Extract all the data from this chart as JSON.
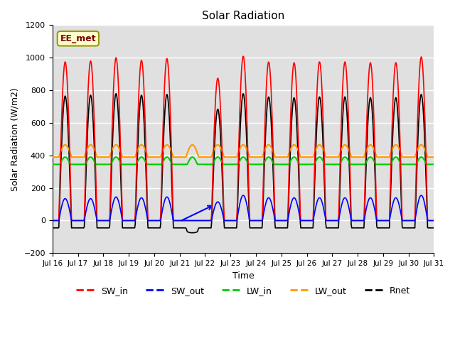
{
  "title": "Solar Radiation",
  "xlabel": "Time",
  "ylabel": "Solar Radiation (W/m2)",
  "annotation": "EE_met",
  "ylim": [
    -200,
    1200
  ],
  "colors": {
    "SW_in": "#ff0000",
    "SW_out": "#0000ff",
    "LW_in": "#00cc00",
    "LW_out": "#ff9900",
    "Rnet": "#000000"
  },
  "x_ticks": [
    "Jul 16",
    "Jul 17",
    "Jul 18",
    "Jul 19",
    "Jul 20",
    "Jul 21",
    "Jul 22",
    "Jul 23",
    "Jul 24",
    "Jul 25",
    "Jul 26",
    "Jul 27",
    "Jul 28",
    "Jul 29",
    "Jul 30",
    "Jul 31"
  ],
  "num_days": 15,
  "SW_in_peaks": [
    975,
    980,
    1000,
    985,
    995,
    0,
    875,
    1010,
    975,
    970,
    975,
    975,
    970,
    970,
    1005
  ],
  "SW_out_peaks": [
    135,
    135,
    145,
    140,
    145,
    0,
    115,
    155,
    140,
    140,
    140,
    140,
    140,
    140,
    155
  ],
  "LW_in_base": 345,
  "LW_out_base": 390,
  "yticks": [
    -200,
    0,
    200,
    400,
    600,
    800,
    1000,
    1200
  ],
  "legend_labels": [
    "SW_in",
    "SW_out",
    "LW_in",
    "LW_out",
    "Rnet"
  ]
}
